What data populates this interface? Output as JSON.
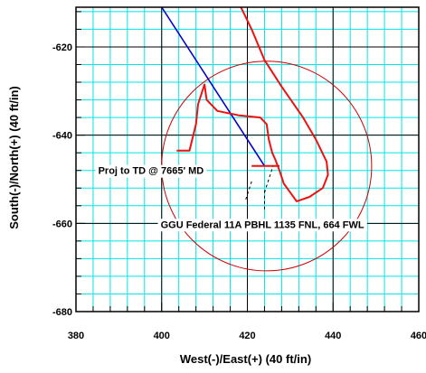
{
  "chart_data": {
    "type": "line",
    "xlabel": "West(-)/East(+) (40 ft/in)",
    "ylabel": "South(-)/North(+) (40 ft/in)",
    "xlim": [
      380,
      460
    ],
    "ylim": [
      -680,
      -611
    ],
    "x_major_ticks": [
      380,
      400,
      420,
      440,
      460
    ],
    "y_major_ticks": [
      -620,
      -640,
      -660,
      -680
    ],
    "x_tick_labels": [
      "380",
      "400",
      "420",
      "440",
      "460"
    ],
    "y_tick_labels": [
      "-620",
      "-640",
      "-660",
      "-680"
    ],
    "grid": true,
    "grid_color": "#00e5e5",
    "major_grid_color": "#000000",
    "series": [
      {
        "color": "#0000cc",
        "points": [
          [
            400,
            -611
          ],
          [
            424,
            -647
          ]
        ]
      },
      {
        "color": "#ee1111",
        "points": [
          [
            418.5,
            -611
          ],
          [
            421,
            -616
          ],
          [
            424,
            -623
          ],
          [
            428,
            -629
          ],
          [
            433,
            -636
          ],
          [
            436,
            -641
          ],
          [
            438.5,
            -646
          ],
          [
            438.8,
            -649
          ],
          [
            437.6,
            -652
          ],
          [
            434.5,
            -654
          ],
          [
            431.5,
            -655
          ],
          [
            430,
            -653
          ],
          [
            428.5,
            -651
          ],
          [
            427.5,
            -648
          ],
          [
            426.5,
            -645.5
          ],
          [
            425.8,
            -644
          ],
          [
            425,
            -641
          ],
          [
            424.5,
            -637.5
          ],
          [
            423,
            -636
          ],
          [
            418,
            -635.5
          ],
          [
            413,
            -634.5
          ],
          [
            410.5,
            -632
          ],
          [
            410,
            -628.5
          ],
          [
            408.5,
            -633
          ],
          [
            408,
            -637.5
          ],
          [
            406.5,
            -643.5
          ],
          [
            403.5,
            -643.5
          ]
        ]
      },
      {
        "color": "#ee1111",
        "points": [
          [
            421,
            -647
          ],
          [
            427.5,
            -647
          ]
        ]
      }
    ],
    "circle": {
      "color": "#cc0000",
      "center": [
        424.5,
        -647
      ],
      "radius": 24.5
    },
    "dashed_lines": [
      {
        "points": [
          [
            421,
            -650.5
          ],
          [
            419.5,
            -655
          ]
        ]
      },
      {
        "points": [
          [
            424,
            -653
          ],
          [
            426,
            -647
          ]
        ]
      },
      {
        "points": [
          [
            424,
            -652.5
          ],
          [
            424,
            -657
          ]
        ]
      }
    ],
    "annotations": [
      {
        "text": "Proj to TD @ 7665' MD",
        "x": 397.5,
        "y": -648
      },
      {
        "text": "GGU Federal 11A PBHL 1135 FNL, 664 FWL",
        "x": 423.5,
        "y": -660.2
      }
    ]
  }
}
